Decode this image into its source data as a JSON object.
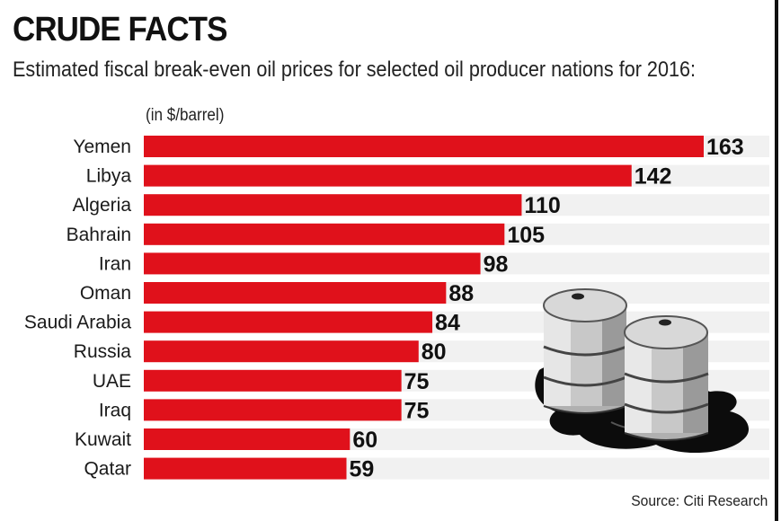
{
  "header": {
    "title": "CRUDE FACTS",
    "subtitle": "Estimated fiscal break-even oil prices for selected oil producer nations for 2016:",
    "unit": "(in $/barrel)",
    "source": "Source: Citi Research"
  },
  "colors": {
    "bar": "#e0111b",
    "track": "#f1f1f1",
    "text": "#111111"
  },
  "illustration": {
    "name": "oil-barrels-spill-icon"
  },
  "chart_data": {
    "type": "bar",
    "orientation": "horizontal",
    "title": "CRUDE FACTS",
    "subtitle": "Estimated fiscal break-even oil prices for selected oil producer nations for 2016:",
    "ylabel": "(in $/barrel)",
    "xlabel": "",
    "categories": [
      "Yemen",
      "Libya",
      "Algeria",
      "Bahrain",
      "Iran",
      "Oman",
      "Saudi Arabia",
      "Russia",
      "UAE",
      "Iraq",
      "Kuwait",
      "Qatar"
    ],
    "values": [
      163,
      142,
      110,
      105,
      98,
      88,
      84,
      80,
      75,
      75,
      60,
      59
    ],
    "xlim": [
      0,
      163
    ],
    "grid": false,
    "legend": "none"
  }
}
